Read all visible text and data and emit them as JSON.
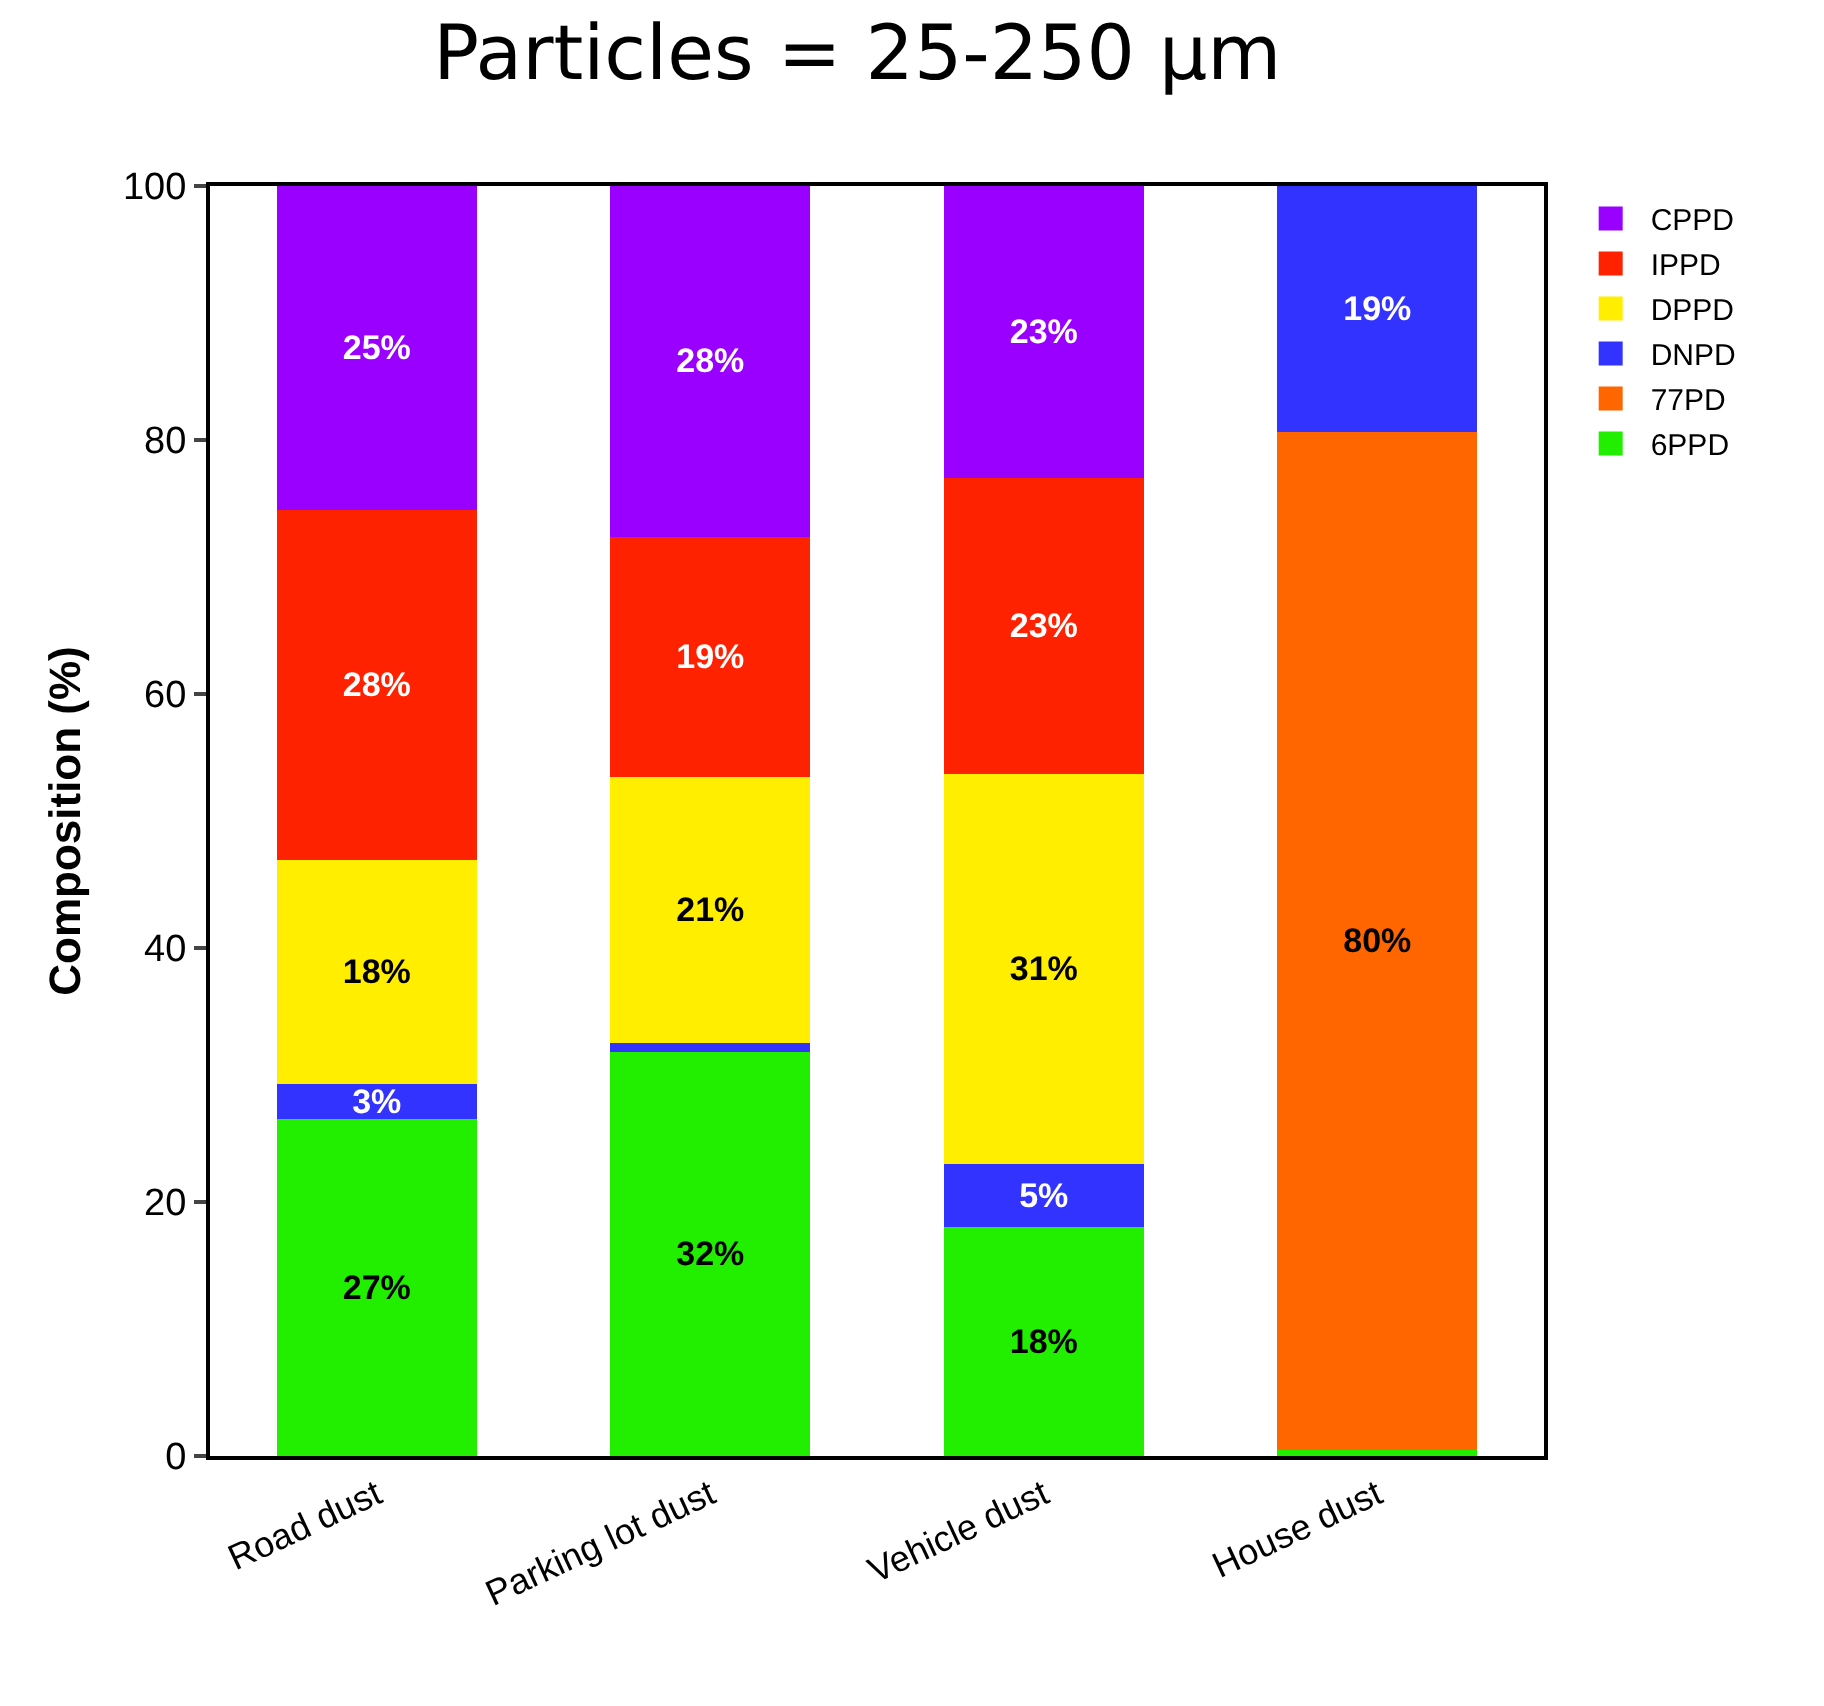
{
  "chart_data": {
    "type": "bar",
    "title": "Particles = 25-250 μm",
    "ylabel": "Composition (%)",
    "stacked": true,
    "categories": [
      "Road dust",
      "Parking lot dust",
      "Vehicle dust",
      "House dust"
    ],
    "series": [
      {
        "name": "6PPD",
        "color": "#22ee00",
        "values": [
          26.5,
          31.8,
          18,
          0.5
        ],
        "value_labels": [
          "27%",
          "32%",
          "18%",
          null
        ]
      },
      {
        "name": "77PD",
        "color": "#ff6600",
        "values": [
          0,
          0,
          0,
          80.1
        ],
        "value_labels": [
          null,
          null,
          null,
          "80%"
        ]
      },
      {
        "name": "DNPD",
        "color": "#3333ff",
        "values": [
          2.8,
          0.7,
          5,
          19.4
        ],
        "value_labels": [
          "3%",
          null,
          "5%",
          "19%"
        ]
      },
      {
        "name": "DPPD",
        "color": "#ffee00",
        "values": [
          17.6,
          21,
          30.7,
          0
        ],
        "value_labels": [
          "18%",
          "21%",
          "31%",
          null
        ]
      },
      {
        "name": "IPPD",
        "color": "#ff2200",
        "values": [
          27.6,
          18.9,
          23.3,
          0
        ],
        "value_labels": [
          "28%",
          "19%",
          "23%",
          null
        ]
      },
      {
        "name": "CPPD",
        "color": "#9900ff",
        "values": [
          25.5,
          27.6,
          23,
          0
        ],
        "value_labels": [
          "25%",
          "28%",
          "23%",
          null
        ]
      }
    ],
    "ylim": [
      0,
      100
    ],
    "yticks": [
      0,
      20,
      40,
      60,
      80,
      100
    ],
    "legend": "top right"
  }
}
